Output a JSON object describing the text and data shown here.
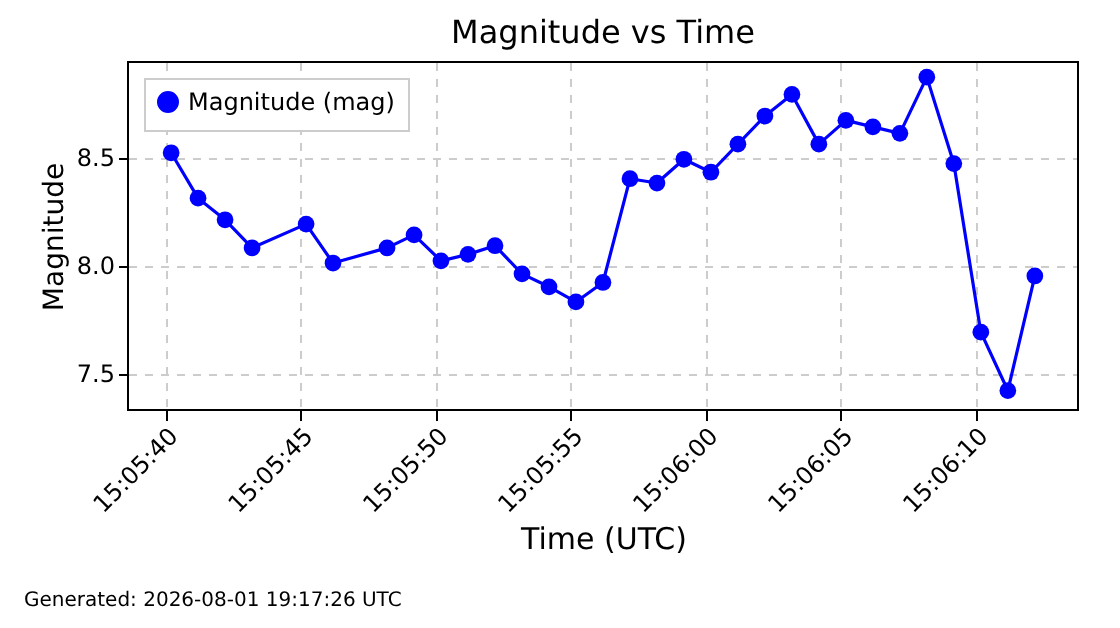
{
  "chart_data": {
    "type": "line",
    "title": "Magnitude vs Time",
    "xlabel": "Time (UTC)",
    "ylabel": "Magnitude",
    "x": [
      15.0945,
      15.094777,
      15.095055,
      15.095333,
      15.095889,
      15.096166,
      15.096722,
      15.097,
      15.097277,
      15.097555,
      15.097833,
      15.098111,
      15.098389,
      15.098666,
      15.098944,
      15.099222,
      15.0995,
      15.099777,
      15.100055,
      15.100333,
      15.100611,
      15.100889,
      15.101166,
      15.101444,
      15.101722,
      15.102,
      15.102277,
      15.102555,
      15.102833,
      15.103111,
      15.103389
    ],
    "series": [
      {
        "name": "Magnitude (mag)",
        "color": "#0000ff",
        "values": [
          8.52,
          8.31,
          8.21,
          8.08,
          8.19,
          8.01,
          8.08,
          8.14,
          8.02,
          8.05,
          8.09,
          7.96,
          7.9,
          7.83,
          7.92,
          8.4,
          8.38,
          8.49,
          8.43,
          8.56,
          8.69,
          8.79,
          8.56,
          8.67,
          8.64,
          8.61,
          8.87,
          8.47,
          7.69,
          7.42,
          7.95
        ]
      }
    ],
    "xlim": [
      15.094056,
      15.103833
    ],
    "xticks": [
      {
        "value": 15.094444,
        "label": "15:05:40"
      },
      {
        "value": 15.095833,
        "label": "15:05:45"
      },
      {
        "value": 15.097222,
        "label": "15:05:50"
      },
      {
        "value": 15.098611,
        "label": "15:05:55"
      },
      {
        "value": 15.1,
        "label": "15:06:00"
      },
      {
        "value": 15.101389,
        "label": "15:06:05"
      },
      {
        "value": 15.102778,
        "label": "15:06:10"
      }
    ],
    "ylim": [
      7.33,
      8.94
    ],
    "yticks": [
      7.5,
      {
        "value": 8,
        "label": "8.0"
      },
      8.5
    ],
    "grid": true,
    "legend": "top left",
    "marker": "circle",
    "line_style": "solid",
    "annotations": [
      "Generated: 2026-08-01 19:17:26 UTC"
    ]
  }
}
